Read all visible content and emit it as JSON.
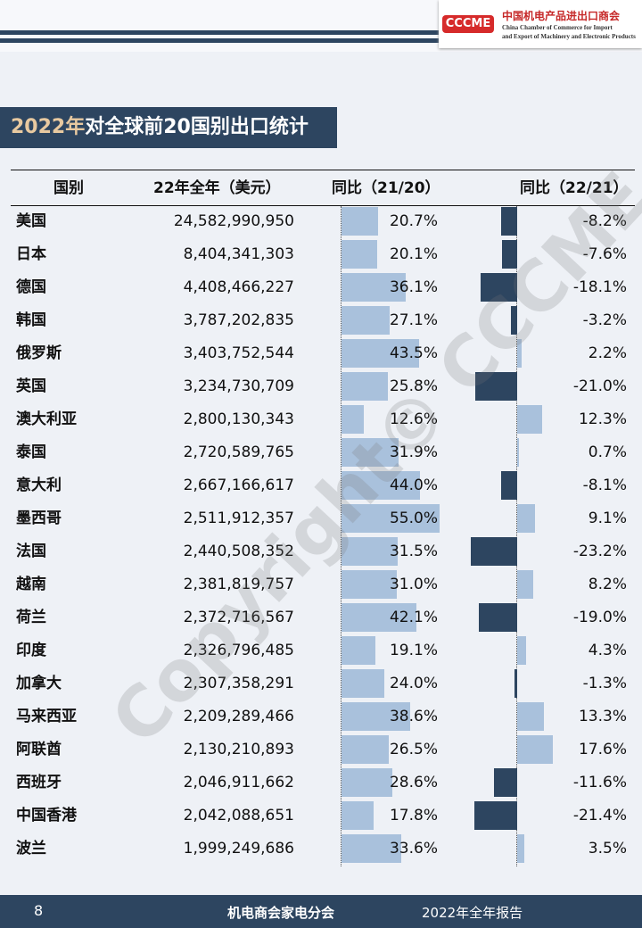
{
  "header": {
    "logo": "CCCME",
    "org_cn": "中国机电产品进出口商会",
    "org_en_1": "China Chamber of Commerce for Import",
    "org_en_2": "and Export of Machinery and Electronic Products"
  },
  "title": {
    "year": "2022年",
    "rest": "对全球前20国别出口统计"
  },
  "watermark": "Copyright© CCCME",
  "table": {
    "columns": [
      "国别",
      "22年全年（美元）",
      "同比（21/20）",
      "同比（22/21）"
    ],
    "rows": [
      [
        "美国",
        "24,582,990,950",
        "20.7%",
        "-8.2%"
      ],
      [
        "日本",
        "8,404,341,303",
        "20.1%",
        "-7.6%"
      ],
      [
        "德国",
        "4,408,466,227",
        "36.1%",
        "-18.1%"
      ],
      [
        "韩国",
        "3,787,202,835",
        "27.1%",
        "-3.2%"
      ],
      [
        "俄罗斯",
        "3,403,752,544",
        "43.5%",
        "2.2%"
      ],
      [
        "英国",
        "3,234,730,709",
        "25.8%",
        "-21.0%"
      ],
      [
        "澳大利亚",
        "2,800,130,343",
        "12.6%",
        "12.3%"
      ],
      [
        "泰国",
        "2,720,589,765",
        "31.9%",
        "0.7%"
      ],
      [
        "意大利",
        "2,667,166,617",
        "44.0%",
        "-8.1%"
      ],
      [
        "墨西哥",
        "2,511,912,357",
        "55.0%",
        "9.1%"
      ],
      [
        "法国",
        "2,440,508,352",
        "31.5%",
        "-23.2%"
      ],
      [
        "越南",
        "2,381,819,757",
        "31.0%",
        "8.2%"
      ],
      [
        "荷兰",
        "2,372,716,567",
        "42.1%",
        "-19.0%"
      ],
      [
        "印度",
        "2,326,796,485",
        "19.1%",
        "4.3%"
      ],
      [
        "加拿大",
        "2,307,358,291",
        "24.0%",
        "-1.3%"
      ],
      [
        "马来西亚",
        "2,209,289,466",
        "38.6%",
        "13.3%"
      ],
      [
        "阿联酋",
        "2,130,210,893",
        "26.5%",
        "17.6%"
      ],
      [
        "西班牙",
        "2,046,911,662",
        "28.6%",
        "-11.6%"
      ],
      [
        "中国香港",
        "2,042,088,651",
        "17.8%",
        "-21.4%"
      ],
      [
        "波兰",
        "1,999,249,686",
        "33.6%",
        "3.5%"
      ]
    ]
  },
  "footer": {
    "page": "8",
    "center": "机电商会家电分会",
    "right": "2022年全年报告"
  }
}
